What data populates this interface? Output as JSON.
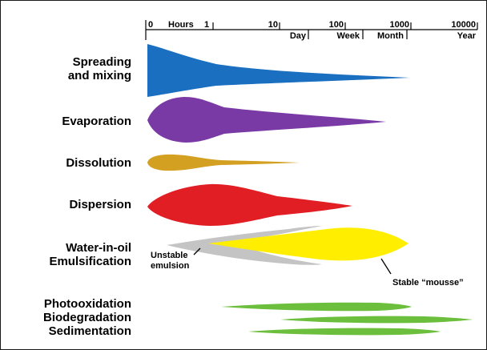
{
  "time_scale": {
    "top_ticks": [
      "0",
      "Hours",
      "1",
      "10",
      "100",
      "1000",
      "10000"
    ],
    "bottom_ticks": [
      "Day",
      "Week",
      "Month",
      "Year"
    ]
  },
  "processes": [
    {
      "lines": [
        "Spreading",
        "and mixing"
      ],
      "color": "#1a6fc0"
    },
    {
      "lines": [
        "Evaporation"
      ],
      "color": "#7a3aa6"
    },
    {
      "lines": [
        "Dissolution"
      ],
      "color": "#d4a022"
    },
    {
      "lines": [
        "Dispersion"
      ],
      "color": "#e01e24"
    },
    {
      "lines": [
        "Water-in-oil",
        "Emulsification"
      ],
      "color": "#ffee00"
    },
    {
      "lines": [
        "Photooxidation",
        "Biodegradation",
        "Sedimentation"
      ],
      "color": "#6cbf3d"
    }
  ],
  "annotations": {
    "unstable": [
      "Unstable",
      "emulsion"
    ],
    "stable": "Stable “mousse”"
  },
  "colors": {
    "unstable_emulsion": "#c4c4c4",
    "border": "#1a1a1a"
  }
}
